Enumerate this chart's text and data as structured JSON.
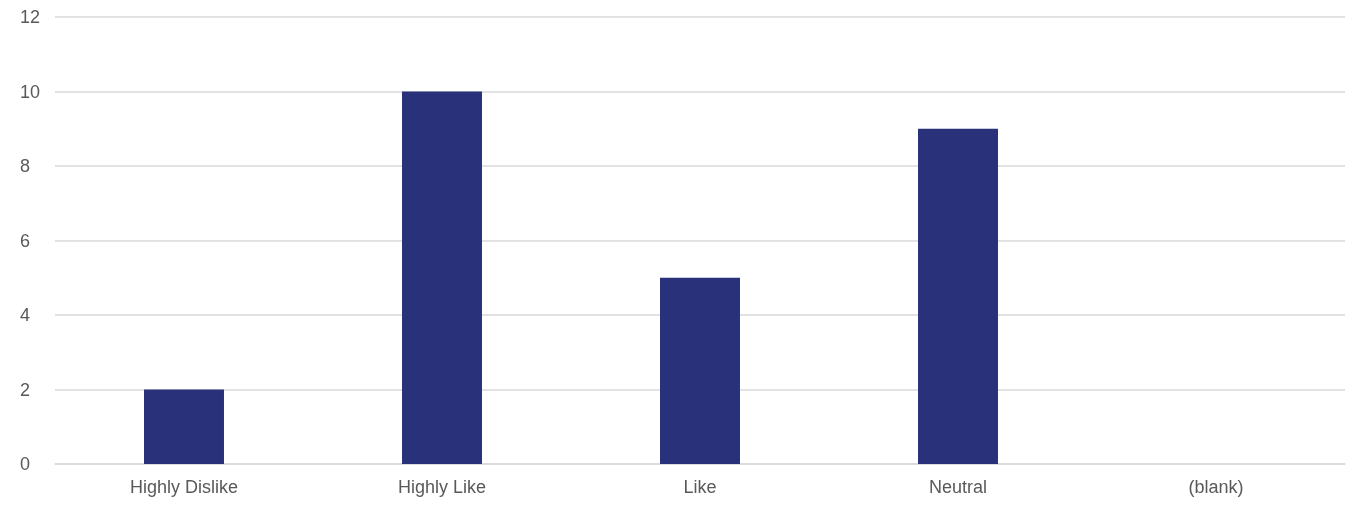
{
  "chart_data": {
    "type": "bar",
    "categories": [
      "Highly Dislike",
      "Highly Like",
      "Like",
      "Neutral",
      "(blank)"
    ],
    "values": [
      2,
      10,
      5,
      9,
      0
    ],
    "color": "#29317a",
    "ylim": [
      0,
      12
    ],
    "yticks": [
      0,
      2,
      4,
      6,
      8,
      10,
      12
    ],
    "grid": "y"
  }
}
